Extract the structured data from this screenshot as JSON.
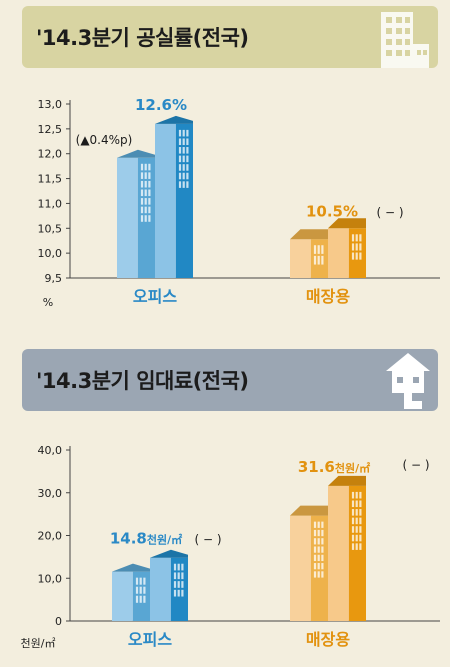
{
  "charts": {
    "vacancy": {
      "title": "'14.3분기 공실률(전국)",
      "unit": "%",
      "icon": "building-icon"
    },
    "rent": {
      "title": "'14.3분기 임대료(전국)",
      "unit": "천원/㎡",
      "icon": "house-icon"
    }
  },
  "colors": {
    "office_light": "#8cc3e6",
    "office_dark": "#2188c4",
    "retail_light": "#f7c98a",
    "retail_dark": "#e8980f",
    "office_text": "#2a89c6",
    "retail_text": "#e2920f"
  },
  "chart_data": [
    {
      "type": "bar",
      "title": "'14.3분기 공실률(전국)",
      "categories": [
        "오피스",
        "매장용"
      ],
      "values": [
        12.6,
        10.5
      ],
      "value_labels": [
        "12.6%",
        "10.5%"
      ],
      "change_labels": [
        "(▲0.4%p)",
        "( − )"
      ],
      "ylabel": "%",
      "ylim": [
        9.5,
        13.0
      ],
      "yticks": [
        "9,5",
        "10,0",
        "10,5",
        "11,0",
        "11,5",
        "12,0",
        "12,5",
        "13,0"
      ],
      "ytick_values": [
        9.5,
        10.0,
        10.5,
        11.0,
        11.5,
        12.0,
        12.5,
        13.0
      ],
      "grid": false
    },
    {
      "type": "bar",
      "title": "'14.3분기 임대료(전국)",
      "categories": [
        "오피스",
        "매장용"
      ],
      "values": [
        14.8,
        31.6
      ],
      "value_labels": [
        "14.8",
        "31.6"
      ],
      "value_units": [
        "천원/㎡",
        "천원/㎡"
      ],
      "change_labels": [
        "( − )",
        "( − )"
      ],
      "ylabel": "천원/㎡",
      "ylim": [
        0,
        40
      ],
      "yticks": [
        "0",
        "10,0",
        "20,0",
        "30,0",
        "40,0"
      ],
      "ytick_values": [
        0,
        10,
        20,
        30,
        40
      ],
      "grid": false
    }
  ]
}
